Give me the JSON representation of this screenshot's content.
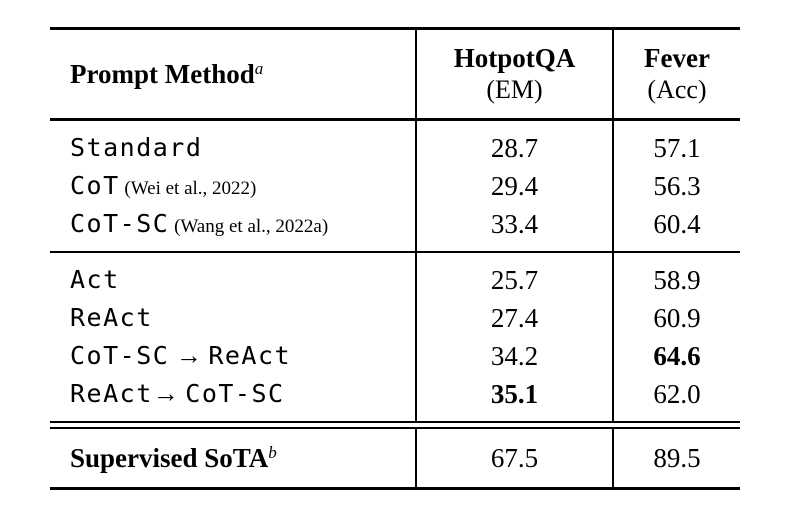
{
  "table": {
    "header": {
      "method_label": "Prompt Method",
      "method_sup": "a",
      "columns": [
        {
          "name": "HotpotQA",
          "sub": "(EM)"
        },
        {
          "name": "Fever",
          "sub": "(Acc)"
        }
      ]
    },
    "groups": [
      {
        "rows": [
          {
            "method": [
              {
                "style": "mono",
                "text": "Standard"
              }
            ],
            "citation": "",
            "values": [
              {
                "text": "28.7",
                "bold": false
              },
              {
                "text": "57.1",
                "bold": false
              }
            ]
          },
          {
            "method": [
              {
                "style": "mono",
                "text": "CoT"
              }
            ],
            "citation": "(Wei et al., 2022)",
            "values": [
              {
                "text": "29.4",
                "bold": false
              },
              {
                "text": "56.3",
                "bold": false
              }
            ]
          },
          {
            "method": [
              {
                "style": "mono",
                "text": "CoT-SC"
              }
            ],
            "citation": "(Wang et al., 2022a)",
            "values": [
              {
                "text": "33.4",
                "bold": false
              },
              {
                "text": "60.4",
                "bold": false
              }
            ]
          }
        ]
      },
      {
        "rows": [
          {
            "method": [
              {
                "style": "mono",
                "text": "Act"
              }
            ],
            "citation": "",
            "values": [
              {
                "text": "25.7",
                "bold": false
              },
              {
                "text": "58.9",
                "bold": false
              }
            ]
          },
          {
            "method": [
              {
                "style": "mono",
                "text": "ReAct"
              }
            ],
            "citation": "",
            "values": [
              {
                "text": "27.4",
                "bold": false
              },
              {
                "text": "60.9",
                "bold": false
              }
            ]
          },
          {
            "method": [
              {
                "style": "mono",
                "text": "CoT-SC"
              },
              {
                "style": "arrow",
                "text": " → "
              },
              {
                "style": "mono",
                "text": "ReAct"
              }
            ],
            "citation": "",
            "values": [
              {
                "text": "34.2",
                "bold": false
              },
              {
                "text": "64.6",
                "bold": true
              }
            ]
          },
          {
            "method": [
              {
                "style": "mono",
                "text": "ReAct"
              },
              {
                "style": "arrow",
                "text": "→ "
              },
              {
                "style": "mono",
                "text": "CoT-SC"
              }
            ],
            "citation": "",
            "values": [
              {
                "text": "35.1",
                "bold": true
              },
              {
                "text": "62.0",
                "bold": false
              }
            ]
          }
        ]
      }
    ],
    "footer": {
      "label": "Supervised SoTA",
      "sup": "b",
      "values": [
        "67.5",
        "89.5"
      ]
    }
  }
}
